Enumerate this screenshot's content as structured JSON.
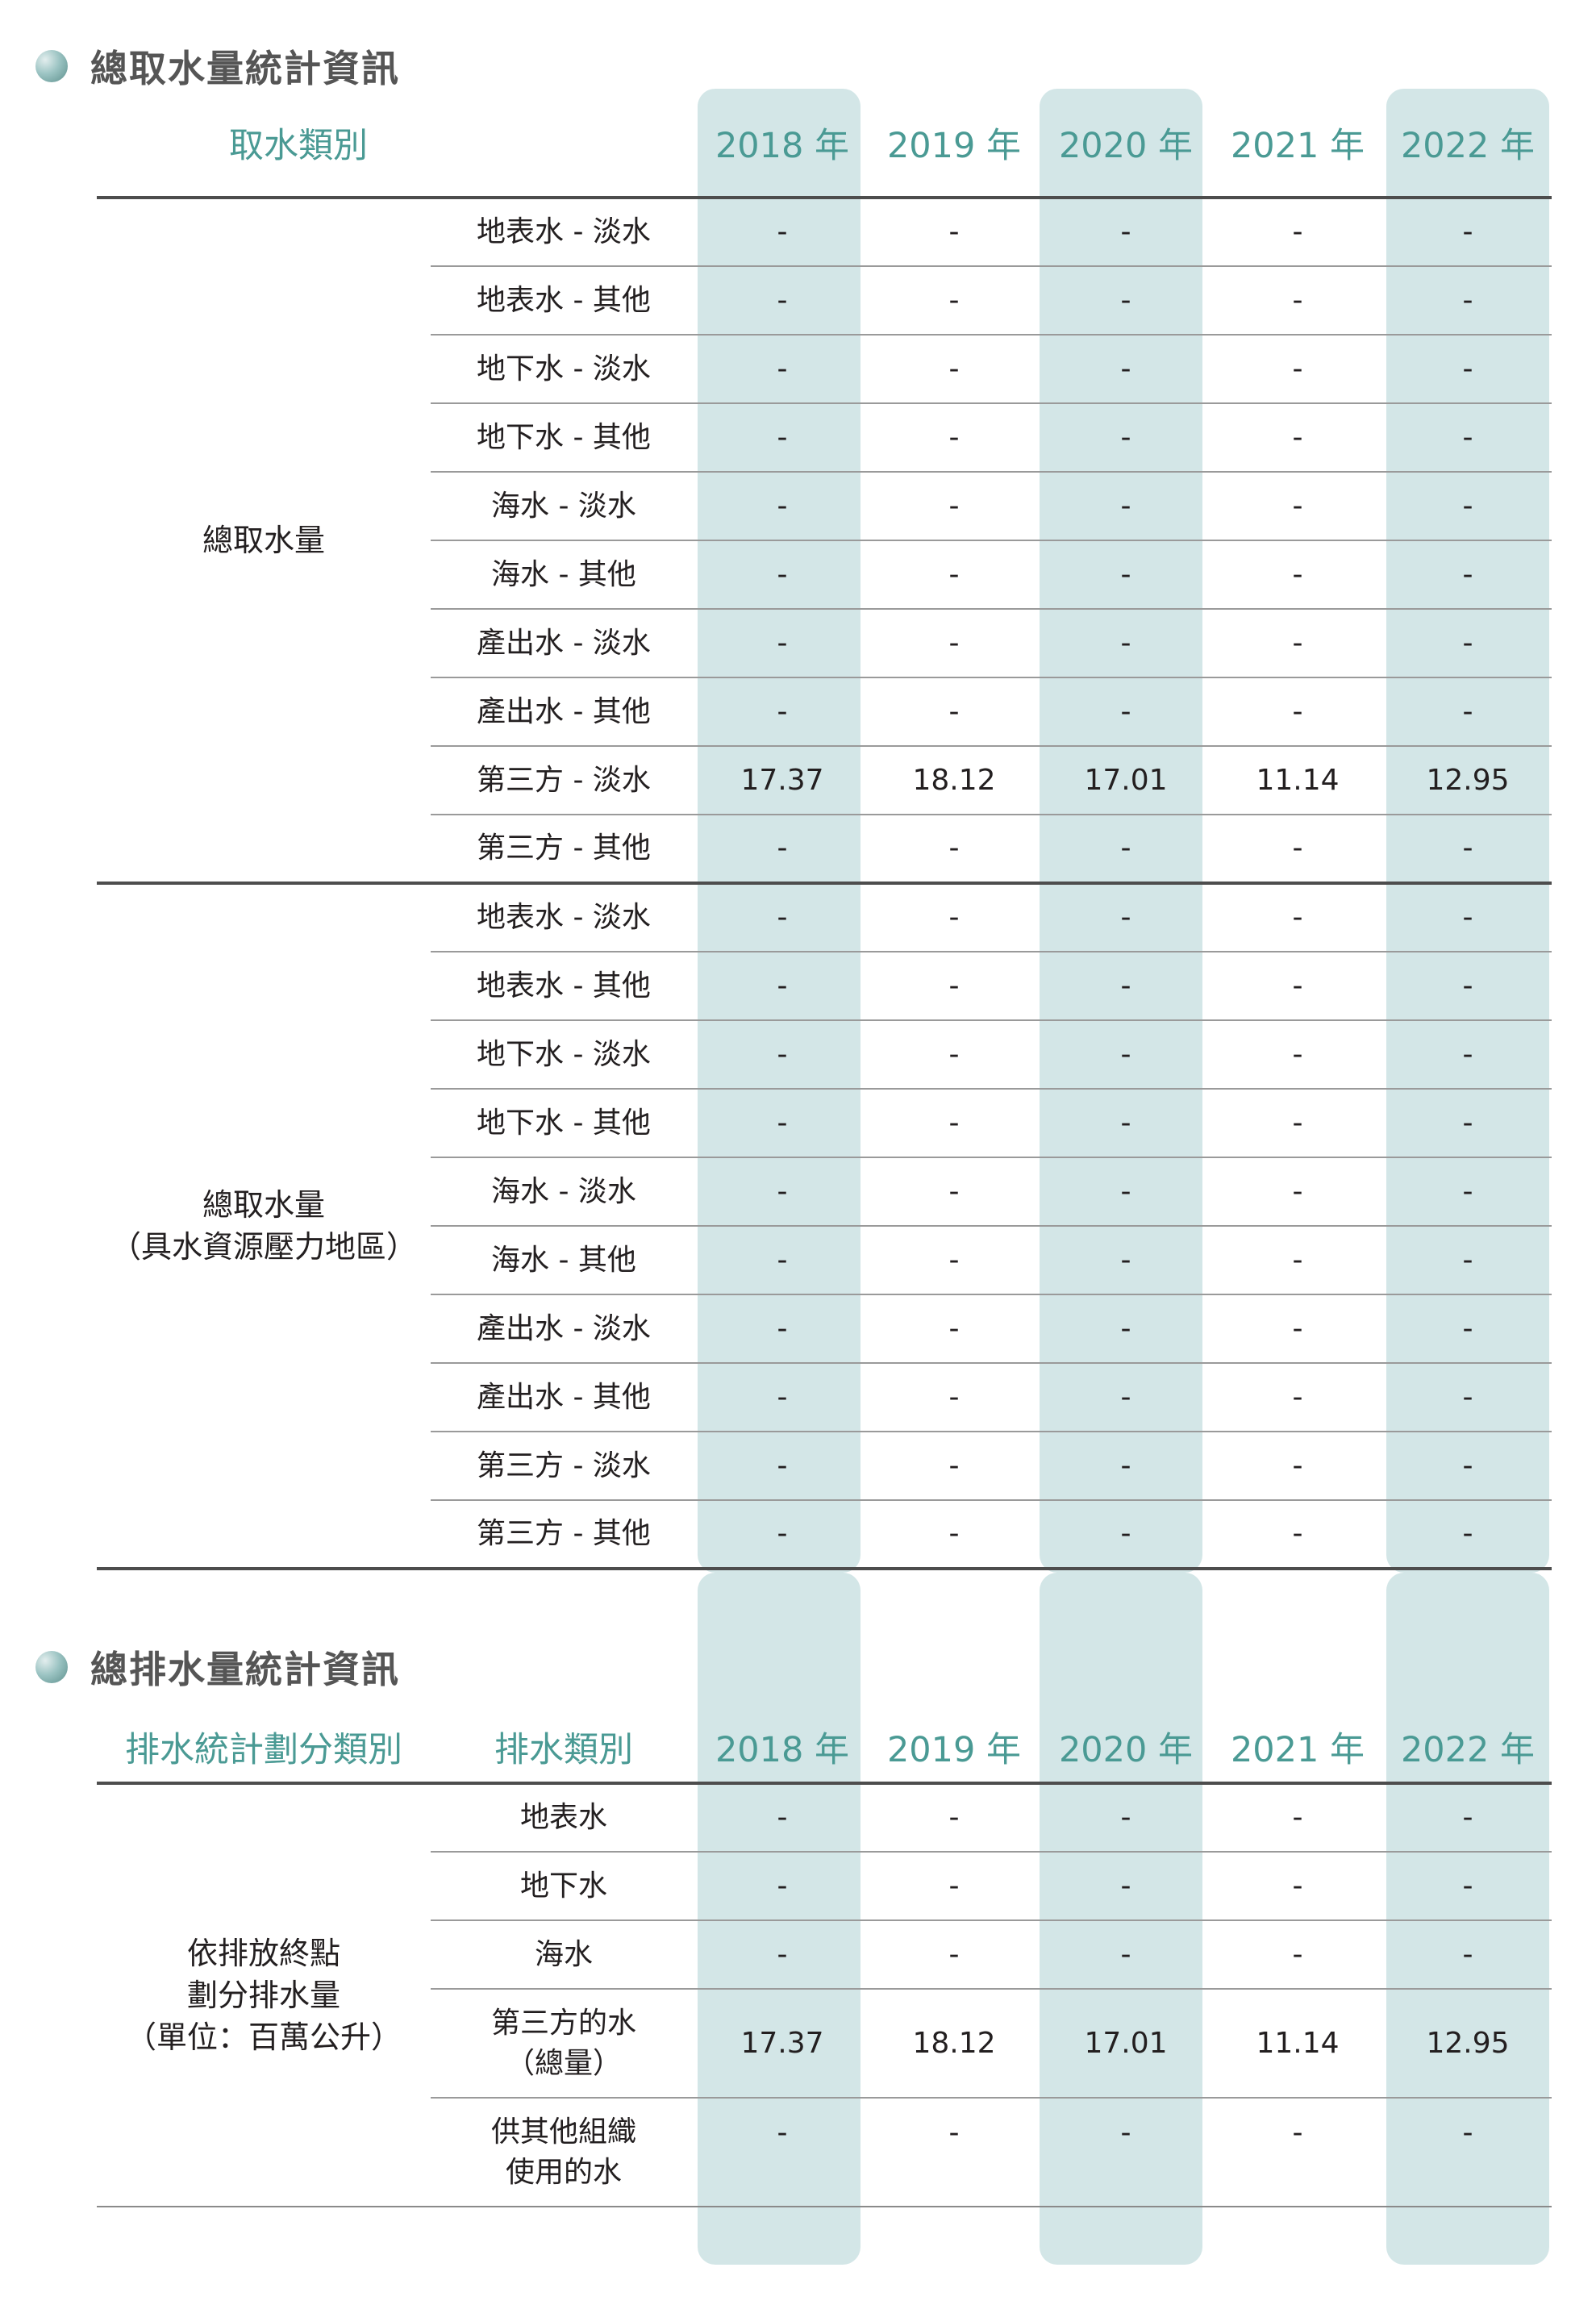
{
  "section1": {
    "title": "總取水量統計資訊",
    "header": {
      "category": "取水類別",
      "years": [
        "2018 年",
        "2019 年",
        "2020 年",
        "2021 年",
        "2022 年"
      ]
    },
    "groups": [
      {
        "label_lines": [
          "總取水量"
        ],
        "rows": [
          {
            "type": "地表水 - 淡水",
            "values": [
              "-",
              "-",
              "-",
              "-",
              "-"
            ]
          },
          {
            "type": "地表水 - 其他",
            "values": [
              "-",
              "-",
              "-",
              "-",
              "-"
            ]
          },
          {
            "type": "地下水 - 淡水",
            "values": [
              "-",
              "-",
              "-",
              "-",
              "-"
            ]
          },
          {
            "type": "地下水 - 其他",
            "values": [
              "-",
              "-",
              "-",
              "-",
              "-"
            ]
          },
          {
            "type": "海水 - 淡水",
            "values": [
              "-",
              "-",
              "-",
              "-",
              "-"
            ]
          },
          {
            "type": "海水 - 其他",
            "values": [
              "-",
              "-",
              "-",
              "-",
              "-"
            ]
          },
          {
            "type": "產出水 - 淡水",
            "values": [
              "-",
              "-",
              "-",
              "-",
              "-"
            ]
          },
          {
            "type": "產出水 - 其他",
            "values": [
              "-",
              "-",
              "-",
              "-",
              "-"
            ]
          },
          {
            "type": "第三方 - 淡水",
            "values": [
              "17.37",
              "18.12",
              "17.01",
              "11.14",
              "12.95"
            ]
          },
          {
            "type": "第三方 - 其他",
            "values": [
              "-",
              "-",
              "-",
              "-",
              "-"
            ]
          }
        ]
      },
      {
        "label_lines": [
          "總取水量",
          "（具水資源壓力地區）"
        ],
        "rows": [
          {
            "type": "地表水 - 淡水",
            "values": [
              "-",
              "-",
              "-",
              "-",
              "-"
            ]
          },
          {
            "type": "地表水 - 其他",
            "values": [
              "-",
              "-",
              "-",
              "-",
              "-"
            ]
          },
          {
            "type": "地下水 - 淡水",
            "values": [
              "-",
              "-",
              "-",
              "-",
              "-"
            ]
          },
          {
            "type": "地下水 - 其他",
            "values": [
              "-",
              "-",
              "-",
              "-",
              "-"
            ]
          },
          {
            "type": "海水 - 淡水",
            "values": [
              "-",
              "-",
              "-",
              "-",
              "-"
            ]
          },
          {
            "type": "海水 - 其他",
            "values": [
              "-",
              "-",
              "-",
              "-",
              "-"
            ]
          },
          {
            "type": "產出水 - 淡水",
            "values": [
              "-",
              "-",
              "-",
              "-",
              "-"
            ]
          },
          {
            "type": "產出水 - 其他",
            "values": [
              "-",
              "-",
              "-",
              "-",
              "-"
            ]
          },
          {
            "type": "第三方 - 淡水",
            "values": [
              "-",
              "-",
              "-",
              "-",
              "-"
            ]
          },
          {
            "type": "第三方 - 其他",
            "values": [
              "-",
              "-",
              "-",
              "-",
              "-"
            ]
          }
        ]
      }
    ]
  },
  "section2": {
    "title": "總排水量統計資訊",
    "header": {
      "group_category": "排水統計劃分類別",
      "category": "排水類別",
      "years": [
        "2018 年",
        "2019 年",
        "2020 年",
        "2021 年",
        "2022 年"
      ]
    },
    "group": {
      "label_lines": [
        "依排放終點",
        "劃分排水量",
        "（單位：百萬公升）"
      ],
      "rows": [
        {
          "type_lines": [
            "地表水"
          ],
          "values": [
            "-",
            "-",
            "-",
            "-",
            "-"
          ]
        },
        {
          "type_lines": [
            "地下水"
          ],
          "values": [
            "-",
            "-",
            "-",
            "-",
            "-"
          ]
        },
        {
          "type_lines": [
            "海水"
          ],
          "values": [
            "-",
            "-",
            "-",
            "-",
            "-"
          ]
        },
        {
          "type_lines": [
            "第三方的水",
            "（總量）"
          ],
          "values": [
            "17.37",
            "18.12",
            "17.01",
            "11.14",
            "12.95"
          ]
        },
        {
          "type_lines": [
            "供其他組織",
            "使用的水"
          ],
          "values": [
            "-",
            "-",
            "-",
            "-",
            "-"
          ]
        }
      ]
    }
  },
  "colors": {
    "accent": "#4a9a94",
    "band": "#d3e6e7",
    "rule_dark": "#4d4d4d",
    "rule_light": "#9a9a9a"
  }
}
